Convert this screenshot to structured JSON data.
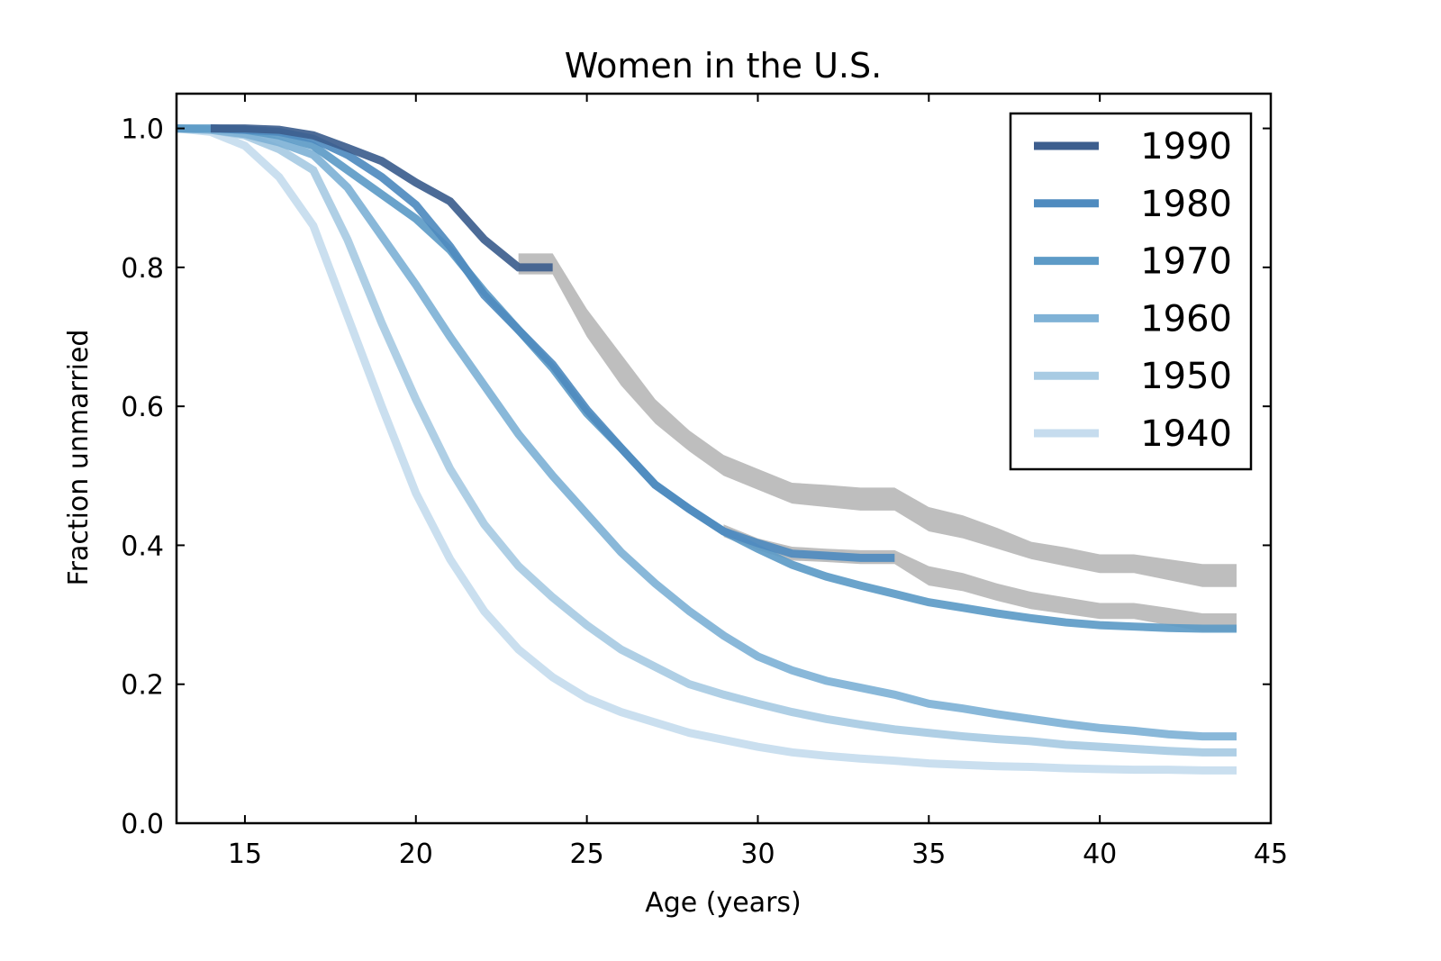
{
  "chart_data": {
    "type": "line",
    "title": "Women in the U.S.",
    "xlabel": "Age (years)",
    "ylabel": "Fraction unmarried",
    "xlim": [
      13,
      45
    ],
    "ylim": [
      0.0,
      1.05
    ],
    "xticks": [
      15,
      20,
      25,
      30,
      35,
      40,
      45
    ],
    "yticks": [
      0.0,
      0.2,
      0.4,
      0.6,
      0.8,
      1.0
    ],
    "xtick_labels": [
      "15",
      "20",
      "25",
      "30",
      "35",
      "40",
      "45"
    ],
    "ytick_labels": [
      "0.0",
      "0.2",
      "0.4",
      "0.6",
      "0.8",
      "1.0"
    ],
    "grid": false,
    "legend_position": "top-right",
    "series": [
      {
        "name": "1990",
        "color": "#3d5e8e",
        "x": [
          14,
          15,
          16,
          17,
          18,
          19,
          20,
          21,
          22,
          23,
          24
        ],
        "y": [
          1.0,
          1.0,
          0.998,
          0.99,
          0.972,
          0.953,
          0.922,
          0.895,
          0.84,
          0.8,
          0.8
        ]
      },
      {
        "name": "1980",
        "color": "#4f8bbf",
        "x": [
          14,
          15,
          16,
          17,
          18,
          19,
          20,
          21,
          22,
          23,
          24,
          25,
          26,
          27,
          28,
          29,
          30,
          31,
          32,
          33,
          34
        ],
        "y": [
          1.0,
          0.998,
          0.995,
          0.985,
          0.962,
          0.93,
          0.89,
          0.83,
          0.76,
          0.71,
          0.66,
          0.595,
          0.54,
          0.487,
          0.452,
          0.42,
          0.403,
          0.388,
          0.385,
          0.382,
          0.382
        ]
      },
      {
        "name": "1970",
        "color": "#5d9bc7",
        "x": [
          13,
          14,
          15,
          16,
          17,
          18,
          19,
          20,
          21,
          22,
          23,
          24,
          25,
          26,
          27,
          28,
          29,
          30,
          31,
          32,
          33,
          34,
          35,
          36,
          37,
          38,
          39,
          40,
          41,
          42,
          43,
          44
        ],
        "y": [
          1.0,
          1.0,
          0.998,
          0.99,
          0.975,
          0.94,
          0.905,
          0.87,
          0.825,
          0.765,
          0.71,
          0.655,
          0.59,
          0.54,
          0.487,
          0.452,
          0.42,
          0.395,
          0.372,
          0.355,
          0.342,
          0.33,
          0.318,
          0.31,
          0.302,
          0.295,
          0.289,
          0.285,
          0.283,
          0.281,
          0.28,
          0.28
        ]
      },
      {
        "name": "1960",
        "color": "#7fb2d6",
        "x": [
          13,
          14,
          15,
          16,
          17,
          18,
          19,
          20,
          21,
          22,
          23,
          24,
          25,
          26,
          27,
          28,
          29,
          30,
          31,
          32,
          33,
          34,
          35,
          36,
          37,
          38,
          39,
          40,
          41,
          42,
          43,
          44
        ],
        "y": [
          1.0,
          0.998,
          0.992,
          0.98,
          0.962,
          0.915,
          0.845,
          0.775,
          0.7,
          0.63,
          0.56,
          0.5,
          0.445,
          0.39,
          0.345,
          0.305,
          0.27,
          0.24,
          0.22,
          0.205,
          0.195,
          0.185,
          0.172,
          0.165,
          0.157,
          0.15,
          0.143,
          0.137,
          0.133,
          0.128,
          0.125,
          0.125
        ]
      },
      {
        "name": "1950",
        "color": "#a8cbe3",
        "x": [
          13,
          14,
          15,
          16,
          17,
          18,
          19,
          20,
          21,
          22,
          23,
          24,
          25,
          26,
          27,
          28,
          29,
          30,
          31,
          32,
          33,
          34,
          35,
          36,
          37,
          38,
          39,
          40,
          41,
          42,
          43,
          44
        ],
        "y": [
          1.0,
          0.998,
          0.99,
          0.97,
          0.94,
          0.84,
          0.72,
          0.61,
          0.51,
          0.43,
          0.37,
          0.325,
          0.285,
          0.25,
          0.225,
          0.2,
          0.185,
          0.172,
          0.16,
          0.15,
          0.142,
          0.135,
          0.13,
          0.125,
          0.121,
          0.118,
          0.113,
          0.11,
          0.107,
          0.104,
          0.102,
          0.102
        ]
      },
      {
        "name": "1940",
        "color": "#c6dcee",
        "x": [
          13,
          14,
          15,
          16,
          17,
          18,
          19,
          20,
          21,
          22,
          23,
          24,
          25,
          26,
          27,
          28,
          29,
          30,
          31,
          32,
          33,
          34,
          35,
          36,
          37,
          38,
          39,
          40,
          41,
          42,
          43,
          44
        ],
        "y": [
          1.0,
          0.995,
          0.975,
          0.93,
          0.86,
          0.73,
          0.6,
          0.475,
          0.38,
          0.305,
          0.25,
          0.21,
          0.18,
          0.16,
          0.145,
          0.13,
          0.12,
          0.11,
          0.102,
          0.097,
          0.093,
          0.09,
          0.086,
          0.084,
          0.082,
          0.081,
          0.079,
          0.078,
          0.077,
          0.077,
          0.076,
          0.076
        ]
      }
    ],
    "bands": [
      {
        "color": "#bebebe",
        "x": [
          23,
          24,
          25,
          26,
          27,
          28,
          29,
          30,
          31,
          32,
          33,
          34,
          35,
          36,
          37,
          38,
          39,
          40,
          41,
          42,
          43,
          44
        ],
        "y_low": [
          0.79,
          0.79,
          0.7,
          0.63,
          0.575,
          0.535,
          0.5,
          0.48,
          0.46,
          0.455,
          0.45,
          0.45,
          0.42,
          0.41,
          0.395,
          0.38,
          0.37,
          0.36,
          0.36,
          0.35,
          0.34,
          0.34
        ],
        "y_high": [
          0.82,
          0.82,
          0.74,
          0.675,
          0.61,
          0.565,
          0.53,
          0.51,
          0.49,
          0.487,
          0.483,
          0.483,
          0.455,
          0.443,
          0.425,
          0.405,
          0.397,
          0.387,
          0.387,
          0.38,
          0.373,
          0.373
        ]
      },
      {
        "color": "#bebebe",
        "x": [
          29,
          30,
          31,
          32,
          33,
          34,
          35,
          36,
          37,
          38,
          39,
          40,
          41,
          42,
          43,
          44
        ],
        "y_low": [
          0.412,
          0.393,
          0.378,
          0.376,
          0.373,
          0.373,
          0.342,
          0.334,
          0.32,
          0.308,
          0.301,
          0.294,
          0.294,
          0.285,
          0.276,
          0.276
        ],
        "y_high": [
          0.43,
          0.41,
          0.398,
          0.395,
          0.393,
          0.393,
          0.37,
          0.36,
          0.345,
          0.333,
          0.325,
          0.317,
          0.317,
          0.31,
          0.302,
          0.302
        ]
      }
    ]
  }
}
